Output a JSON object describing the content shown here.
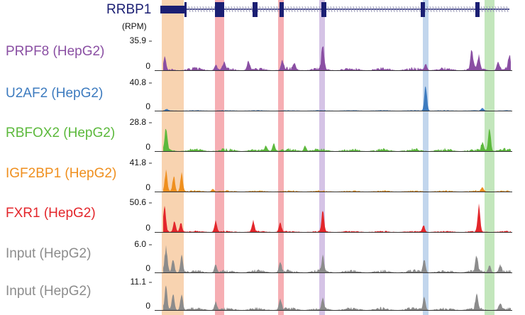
{
  "gene": {
    "name": "RRBP1",
    "color": "#1b1f73"
  },
  "unit_label": "(RPM)",
  "tracks": [
    {
      "label": "PRPF8 (HepG2)",
      "max": "35.9",
      "zero": "0",
      "color": "#8a4fa3"
    },
    {
      "label": "U2AF2 (HepG2)",
      "max": "40.8",
      "zero": "0",
      "color": "#3d7bbf"
    },
    {
      "label": "RBFOX2 (HepG2)",
      "max": "28.8",
      "zero": "0",
      "color": "#5cb93c"
    },
    {
      "label": "IGF2BP1 (HepG2)",
      "max": "41.8",
      "zero": "0",
      "color": "#ef8f1e"
    },
    {
      "label": "FXR1 (HepG2)",
      "max": "50.6",
      "zero": "0",
      "color": "#e3262b"
    },
    {
      "label": "Input (HepG2)",
      "max": "6.0",
      "zero": "0",
      "color": "#8c8c8c"
    },
    {
      "label": "Input (HepG2)",
      "max": "11.1",
      "zero": "0",
      "color": "#8c8c8c"
    }
  ],
  "highlights": [
    {
      "color": "#f5c08f"
    },
    {
      "color": "#f28c93"
    },
    {
      "color": "#f28c93"
    },
    {
      "color": "#c3a9dc"
    },
    {
      "color": "#a8c4e6"
    },
    {
      "color": "#a9dca0"
    }
  ]
}
